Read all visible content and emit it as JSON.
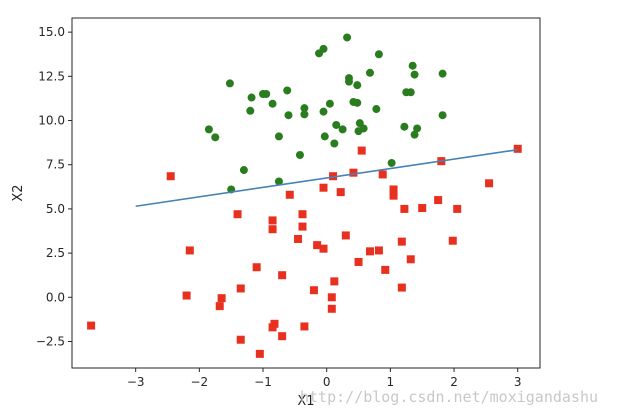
{
  "watermark": "http://blog.csdn.net/moxigandashu",
  "chart_data": {
    "type": "scatter",
    "title": "",
    "xlabel": "X1",
    "ylabel": "X2",
    "xlim": [
      -4.0,
      3.35
    ],
    "ylim": [
      -4.0,
      15.8
    ],
    "xticks": [
      -3,
      -2,
      -1,
      0,
      1,
      2,
      3
    ],
    "yticks": [
      -2.5,
      0.0,
      2.5,
      5.0,
      7.5,
      10.0,
      12.5,
      15.0
    ],
    "xtick_labels": [
      "−3",
      "−2",
      "−1",
      "0",
      "1",
      "2",
      "3"
    ],
    "ytick_labels": [
      "−2.5",
      "0.0",
      "2.5",
      "5.0",
      "7.5",
      "10.0",
      "12.5",
      "15.0"
    ],
    "grid": false,
    "colors": {
      "class0": "#e8301f",
      "class1": "#2a7d1f",
      "line": "#4682b4",
      "axes": "#262626"
    },
    "series": [
      {
        "marker": "square",
        "points": [
          [
            -3.7,
            -1.6
          ],
          [
            -2.45,
            6.85
          ],
          [
            -2.15,
            2.65
          ],
          [
            -2.2,
            0.1
          ],
          [
            -1.65,
            -0.05
          ],
          [
            -1.68,
            -0.5
          ],
          [
            -1.4,
            4.7
          ],
          [
            -1.35,
            0.5
          ],
          [
            -1.35,
            -2.4
          ],
          [
            -1.1,
            1.7
          ],
          [
            -1.05,
            -3.2
          ],
          [
            -0.85,
            4.35
          ],
          [
            -0.85,
            3.85
          ],
          [
            -0.85,
            -1.7
          ],
          [
            -0.82,
            -1.5
          ],
          [
            -0.7,
            1.25
          ],
          [
            -0.7,
            -2.2
          ],
          [
            -0.58,
            5.8
          ],
          [
            -0.45,
            3.3
          ],
          [
            -0.38,
            4.7
          ],
          [
            -0.38,
            4.0
          ],
          [
            -0.35,
            -1.65
          ],
          [
            -0.2,
            0.4
          ],
          [
            -0.15,
            2.95
          ],
          [
            -0.05,
            2.75
          ],
          [
            -0.05,
            6.2
          ],
          [
            0.08,
            0.0
          ],
          [
            0.08,
            -0.65
          ],
          [
            0.1,
            6.85
          ],
          [
            0.12,
            0.9
          ],
          [
            0.22,
            5.95
          ],
          [
            0.3,
            3.5
          ],
          [
            0.42,
            7.05
          ],
          [
            0.5,
            2.0
          ],
          [
            0.55,
            8.3
          ],
          [
            0.68,
            2.6
          ],
          [
            0.82,
            2.65
          ],
          [
            0.88,
            6.95
          ],
          [
            0.92,
            1.55
          ],
          [
            1.05,
            6.1
          ],
          [
            1.05,
            5.75
          ],
          [
            1.18,
            3.15
          ],
          [
            1.18,
            0.55
          ],
          [
            1.22,
            5.0
          ],
          [
            1.32,
            2.15
          ],
          [
            1.5,
            5.05
          ],
          [
            1.75,
            5.5
          ],
          [
            1.8,
            7.7
          ],
          [
            1.98,
            3.2
          ],
          [
            2.05,
            5.0
          ],
          [
            2.55,
            6.45
          ],
          [
            3.0,
            8.4
          ]
        ]
      },
      {
        "marker": "circle",
        "points": [
          [
            -1.5,
            6.1
          ],
          [
            -1.3,
            7.2
          ],
          [
            -1.85,
            9.5
          ],
          [
            -1.75,
            9.05
          ],
          [
            -1.52,
            12.1
          ],
          [
            -1.2,
            10.55
          ],
          [
            -1.18,
            11.3
          ],
          [
            -1.0,
            11.5
          ],
          [
            -0.95,
            11.5
          ],
          [
            -0.85,
            10.95
          ],
          [
            -0.75,
            9.1
          ],
          [
            -0.75,
            6.55
          ],
          [
            -0.62,
            11.7
          ],
          [
            -0.6,
            10.3
          ],
          [
            -0.42,
            8.05
          ],
          [
            -0.35,
            10.35
          ],
          [
            -0.35,
            10.7
          ],
          [
            -0.12,
            13.8
          ],
          [
            -0.05,
            14.05
          ],
          [
            -0.05,
            10.5
          ],
          [
            -0.03,
            9.1
          ],
          [
            0.05,
            10.95
          ],
          [
            0.12,
            8.7
          ],
          [
            0.15,
            9.75
          ],
          [
            0.25,
            9.5
          ],
          [
            0.32,
            14.7
          ],
          [
            0.35,
            12.4
          ],
          [
            0.35,
            12.2
          ],
          [
            0.42,
            11.05
          ],
          [
            0.48,
            11.0
          ],
          [
            0.48,
            12.0
          ],
          [
            0.5,
            9.4
          ],
          [
            0.52,
            9.85
          ],
          [
            0.58,
            9.55
          ],
          [
            0.68,
            12.7
          ],
          [
            0.78,
            10.65
          ],
          [
            0.82,
            13.75
          ],
          [
            1.02,
            7.6
          ],
          [
            1.22,
            9.65
          ],
          [
            1.25,
            11.6
          ],
          [
            1.32,
            11.6
          ],
          [
            1.35,
            13.1
          ],
          [
            1.38,
            12.6
          ],
          [
            1.38,
            9.2
          ],
          [
            1.42,
            9.55
          ],
          [
            1.8,
            7.7
          ],
          [
            1.82,
            12.65
          ],
          [
            1.82,
            10.3
          ]
        ]
      },
      {
        "type": "line",
        "points": [
          [
            -3.0,
            5.15
          ],
          [
            3.0,
            8.35
          ]
        ]
      }
    ]
  }
}
